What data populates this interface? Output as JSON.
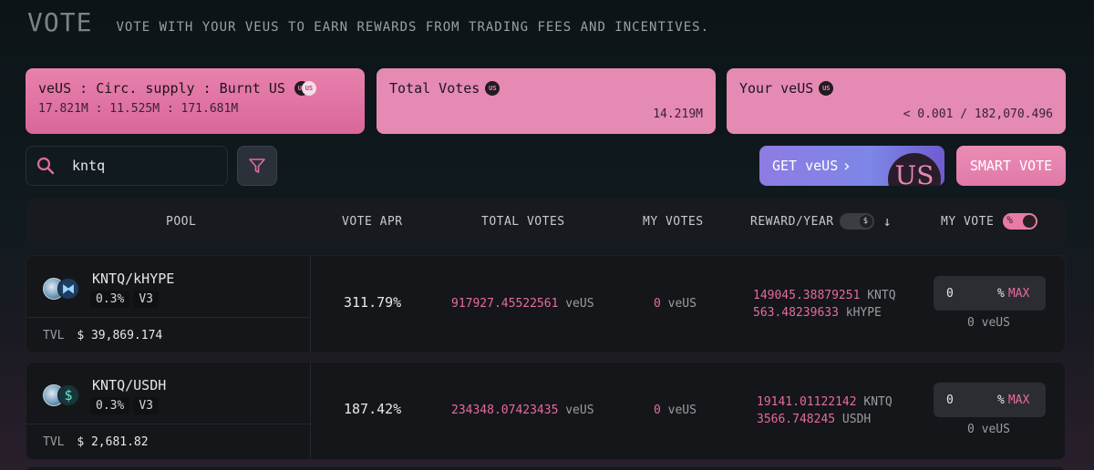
{
  "header": {
    "title": "VOTE",
    "subtitle": "VOTE WITH YOUR VEUS TO EARN REWARDS FROM TRADING FEES AND INCENTIVES."
  },
  "cards": {
    "supply": {
      "label": "veUS : Circ. supply : Burnt US",
      "value": "17.821M : 11.525M : 171.681M"
    },
    "total_votes": {
      "label": "Total Votes",
      "value": "14.219M"
    },
    "your_veus": {
      "label": "Your veUS",
      "value": "< 0.001 / 182,070.496"
    }
  },
  "coin_text": "US",
  "search": {
    "value": "kntq"
  },
  "buttons": {
    "get_veus": "GET veUS",
    "chevron": "›",
    "big_us": "US",
    "smart_vote": "SMART VOTE"
  },
  "table": {
    "headers": {
      "pool": "POOL",
      "vote_apr": "VOTE APR",
      "total_votes": "TOTAL VOTES",
      "my_votes": "MY VOTES",
      "reward_year": "REWARD/YEAR",
      "reward_toggle": "$",
      "sort_arrow": "↓",
      "my_vote": "MY VOTE",
      "my_vote_toggle": "%"
    },
    "rows": [
      {
        "pair": "KNTQ/kHYPE",
        "token_b_glyph": "⧓",
        "fee": "0.3%",
        "version": "V3",
        "tvl_label": "TVL",
        "tvl": "$ 39,869.174",
        "apr": "311.79%",
        "total_votes_amount": "917927.45522561",
        "total_votes_unit": "veUS",
        "my_votes_amount": "0",
        "my_votes_unit": "veUS",
        "reward1_amount": "149045.38879251",
        "reward1_token": "KNTQ",
        "reward2_amount": "563.48239633",
        "reward2_token": "kHYPE",
        "vote_value": "0",
        "vote_pct": "%",
        "vote_max": "MAX",
        "vote_sub": "0 veUS"
      },
      {
        "pair": "KNTQ/USDH",
        "token_b_glyph": "$",
        "fee": "0.3%",
        "version": "V3",
        "tvl_label": "TVL",
        "tvl": "$ 2,681.82",
        "apr": "187.42%",
        "total_votes_amount": "234348.07423435",
        "total_votes_unit": "veUS",
        "my_votes_amount": "0",
        "my_votes_unit": "veUS",
        "reward1_amount": "19141.01122142",
        "reward1_token": "KNTQ",
        "reward2_amount": "3566.748245",
        "reward2_token": "USDH",
        "vote_value": "0",
        "vote_pct": "%",
        "vote_max": "MAX",
        "vote_sub": "0 veUS"
      }
    ]
  }
}
